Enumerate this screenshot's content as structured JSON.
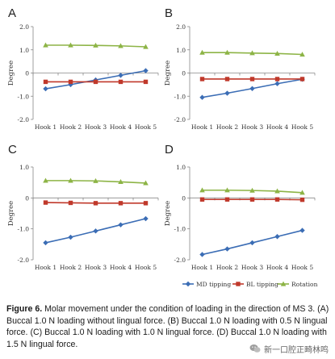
{
  "chart_data": [
    {
      "panel_label": "A",
      "type": "line",
      "categories": [
        "Hook 1",
        "Hook 2",
        "Hook 3",
        "Hook 4",
        "Hook 5"
      ],
      "ylabel": "Degree",
      "ylim": [
        -2.0,
        2.0
      ],
      "yticks": [
        "2.0",
        "1.0",
        "0",
        "-1.0",
        "-2.0"
      ],
      "series": [
        {
          "name": "MD tipping",
          "values": [
            -0.68,
            -0.5,
            -0.3,
            -0.1,
            0.1
          ]
        },
        {
          "name": "BL tipping",
          "values": [
            -0.38,
            -0.38,
            -0.38,
            -0.38,
            -0.38
          ]
        },
        {
          "name": "Rotation",
          "values": [
            1.2,
            1.2,
            1.19,
            1.17,
            1.13
          ]
        }
      ]
    },
    {
      "panel_label": "B",
      "type": "line",
      "categories": [
        "Hook 1",
        "Hook 2",
        "Hook 3",
        "Hook 4",
        "Hook 5"
      ],
      "ylabel": "Degree",
      "ylim": [
        -2.0,
        2.0
      ],
      "yticks": [
        "2.0",
        "1.0",
        "0",
        "-1.0",
        "-2.0"
      ],
      "series": [
        {
          "name": "MD tipping",
          "values": [
            -1.05,
            -0.87,
            -0.67,
            -0.46,
            -0.27
          ]
        },
        {
          "name": "BL tipping",
          "values": [
            -0.26,
            -0.26,
            -0.26,
            -0.26,
            -0.26
          ]
        },
        {
          "name": "Rotation",
          "values": [
            0.88,
            0.88,
            0.86,
            0.84,
            0.8
          ]
        }
      ]
    },
    {
      "panel_label": "C",
      "type": "line",
      "categories": [
        "Hook 1",
        "Hook 2",
        "Hook 3",
        "Hook 4",
        "Hook 5"
      ],
      "ylabel": "Degree",
      "ylim": [
        -2.0,
        1.0
      ],
      "yticks": [
        "1.0",
        "0",
        "-1.0",
        "-2.0"
      ],
      "series": [
        {
          "name": "MD tipping",
          "values": [
            -1.45,
            -1.27,
            -1.07,
            -0.87,
            -0.67
          ]
        },
        {
          "name": "BL tipping",
          "values": [
            -0.15,
            -0.16,
            -0.17,
            -0.17,
            -0.17
          ]
        },
        {
          "name": "Rotation",
          "values": [
            0.56,
            0.56,
            0.55,
            0.52,
            0.48
          ]
        }
      ]
    },
    {
      "panel_label": "D",
      "type": "line",
      "categories": [
        "Hook 1",
        "Hook 2",
        "Hook 3",
        "Hook 4",
        "Hook 5"
      ],
      "ylabel": "Degree",
      "ylim": [
        -2.0,
        1.0
      ],
      "yticks": [
        "1.0",
        "0",
        "-1.0",
        "-2.0"
      ],
      "series": [
        {
          "name": "MD tipping",
          "values": [
            -1.83,
            -1.65,
            -1.45,
            -1.25,
            -1.05
          ]
        },
        {
          "name": "BL tipping",
          "values": [
            -0.05,
            -0.05,
            -0.05,
            -0.05,
            -0.06
          ]
        },
        {
          "name": "Rotation",
          "values": [
            0.25,
            0.25,
            0.24,
            0.22,
            0.17
          ]
        }
      ]
    }
  ],
  "legend": [
    {
      "name": "MD tipping",
      "color": "#3b6db5",
      "marker": "diamond"
    },
    {
      "name": "BL tipping",
      "color": "#c0392b",
      "marker": "square"
    },
    {
      "name": "Rotation",
      "color": "#8db446",
      "marker": "triangle"
    }
  ],
  "caption": {
    "lead": "Figure 6.",
    "text": " Molar movement under the condition of loading in the direction of MS 3. (A) Buccal 1.0 N loading without lingual force. (B) Buccal 1.0 N loading with 0.5 N lingual force. (C) Buccal 1.0 N loading with 1.0 N lingual force. (D) Buccal 1.0 N loading with 1.5 N lingual force."
  },
  "watermark": {
    "text": "新一口腔正畸林鸣",
    "icon": "wechat-icon"
  }
}
